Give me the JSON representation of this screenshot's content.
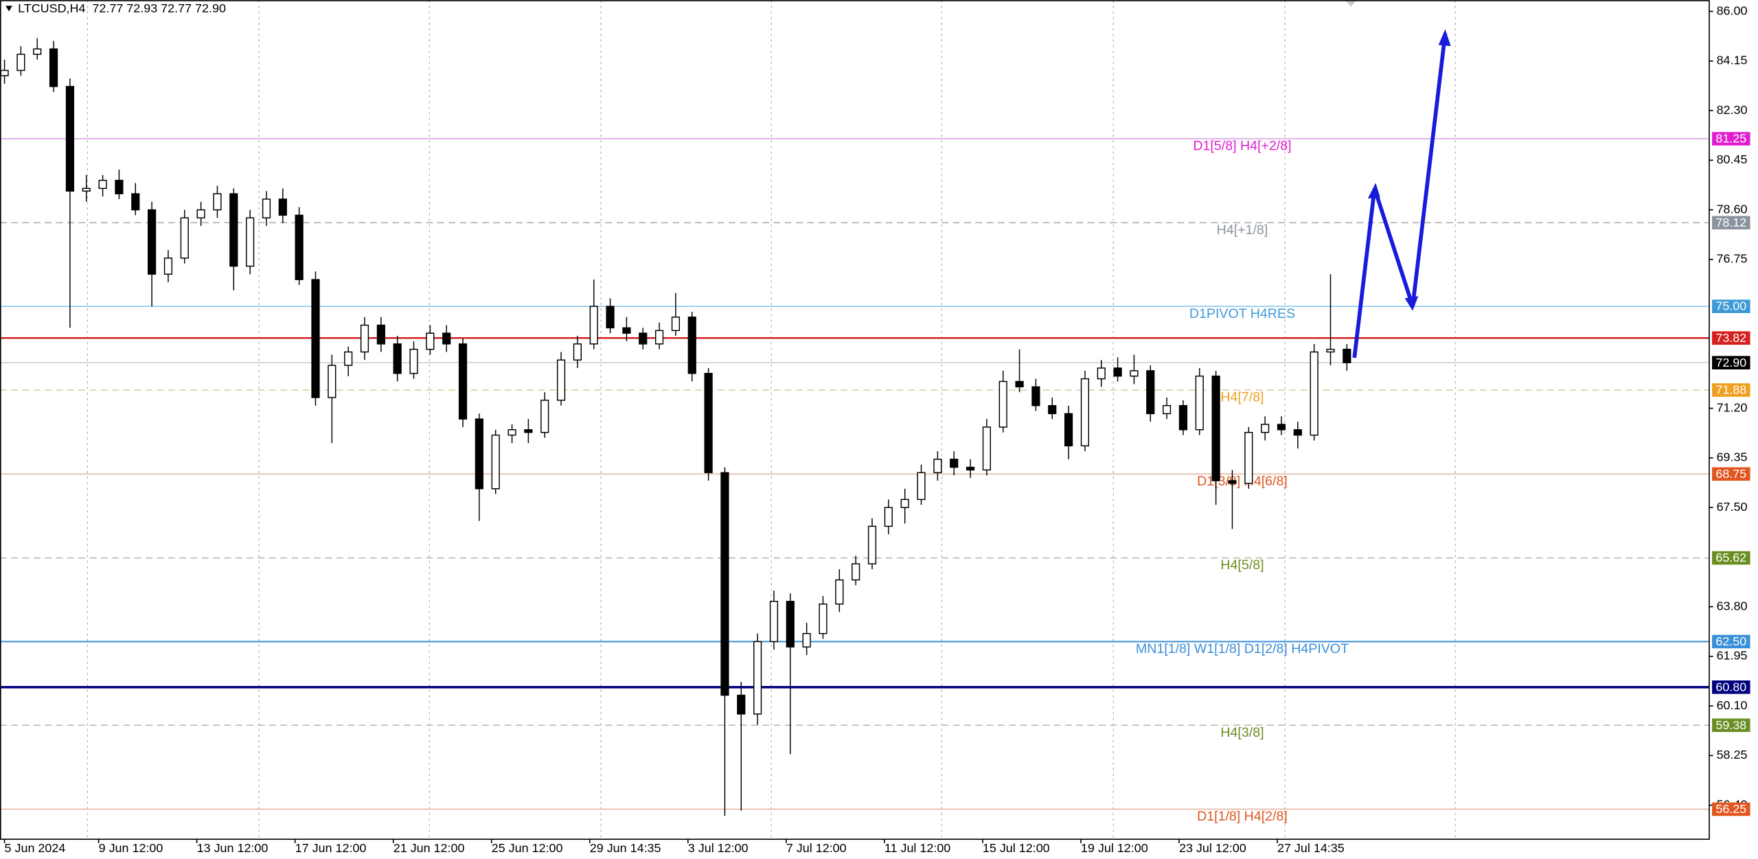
{
  "chart_data": {
    "type": "candlestick",
    "title": "LTCUSD,H4  72.77 72.93 72.77 72.90",
    "xlim": [
      -1.1,
      416.4
    ],
    "ylim": [
      55.15,
      86.42
    ],
    "yticks": [
      {
        "value": 86,
        "label": "86.00"
      },
      {
        "value": 84.15,
        "label": "84.15"
      },
      {
        "value": 82.3,
        "label": "82.30"
      },
      {
        "value": 80.45,
        "label": "80.45"
      },
      {
        "value": 78.6,
        "label": "78.60"
      },
      {
        "value": 76.75,
        "label": "76.75"
      },
      {
        "value": 71.2,
        "label": "71.20"
      },
      {
        "value": 69.35,
        "label": "69.35"
      },
      {
        "value": 67.5,
        "label": "67.50"
      },
      {
        "value": 63.8,
        "label": "63.80"
      },
      {
        "value": 61.95,
        "label": "61.95"
      },
      {
        "value": 60.1,
        "label": "60.10"
      },
      {
        "value": 58.25,
        "label": "58.25"
      },
      {
        "value": 56.4,
        "label": "56.40"
      }
    ],
    "xticks": [
      {
        "value": 0,
        "label": "5 Jun 2024"
      },
      {
        "value": 23,
        "label": "9 Jun 12:00"
      },
      {
        "value": 47,
        "label": "13 Jun 12:00"
      },
      {
        "value": 71,
        "label": "17 Jun 12:00"
      },
      {
        "value": 95,
        "label": "21 Jun 12:00"
      },
      {
        "value": 119,
        "label": "25 Jun 12:00"
      },
      {
        "value": 143,
        "label": "29 Jun 14:35"
      },
      {
        "value": 167,
        "label": "3 Jul 12:00"
      },
      {
        "value": 191,
        "label": "7 Jul 12:00"
      },
      {
        "value": 215,
        "label": "11 Jul 12:00"
      },
      {
        "value": 239,
        "label": "15 Jul 12:00"
      },
      {
        "value": 263,
        "label": "19 Jul 12:00"
      },
      {
        "value": 287,
        "label": "23 Jul 12:00"
      },
      {
        "value": 311,
        "label": "27 Jul 14:35"
      }
    ],
    "x": [
      0,
      4,
      8,
      12,
      16,
      20,
      24,
      28,
      32,
      36,
      40,
      44,
      48,
      52,
      56,
      60,
      64,
      68,
      72,
      76,
      80,
      84,
      88,
      92,
      96,
      100,
      104,
      108,
      112,
      116,
      120,
      124,
      128,
      132,
      136,
      140,
      144,
      148,
      152,
      156,
      160,
      164,
      168,
      172,
      176,
      180,
      184,
      188,
      192,
      196,
      200,
      204,
      208,
      212,
      216,
      220,
      224,
      228,
      232,
      236,
      240,
      244,
      248,
      252,
      256,
      260,
      264,
      268,
      272,
      276,
      280,
      284,
      288,
      292,
      296,
      300,
      304,
      308,
      312,
      316,
      320,
      324,
      328
    ],
    "open": [
      83.6,
      83.8,
      84.4,
      84.6,
      83.2,
      79.3,
      79.4,
      79.7,
      79.2,
      78.6,
      76.2,
      76.8,
      78.3,
      78.6,
      79.2,
      76.5,
      78.3,
      79.0,
      78.4,
      76.0,
      71.6,
      72.8,
      73.3,
      74.3,
      73.6,
      72.5,
      73.4,
      74.0,
      73.6,
      70.8,
      68.2,
      70.2,
      70.4,
      70.3,
      71.5,
      73.0,
      73.6,
      75.0,
      74.2,
      74.0,
      73.6,
      74.1,
      74.6,
      72.5,
      68.8,
      60.5,
      59.8,
      62.5,
      64.0,
      62.3,
      62.8,
      63.9,
      64.8,
      65.4,
      66.8,
      67.5,
      67.8,
      68.8,
      69.3,
      69.0,
      68.9,
      70.5,
      72.2,
      72.0,
      71.3,
      71.0,
      69.8,
      72.3,
      72.7,
      72.4,
      72.6,
      71.0,
      71.3,
      70.4,
      72.4,
      68.5,
      68.4,
      70.3,
      70.6,
      70.4,
      70.2,
      73.3,
      73.4
    ],
    "high": [
      84.2,
      84.7,
      85.0,
      84.9,
      83.5,
      79.9,
      79.9,
      80.1,
      79.6,
      78.9,
      77.1,
      78.6,
      78.9,
      79.5,
      79.4,
      78.6,
      79.3,
      79.4,
      78.7,
      76.3,
      73.2,
      73.5,
      74.6,
      74.6,
      73.9,
      73.7,
      74.3,
      74.3,
      73.8,
      71.0,
      70.4,
      70.6,
      70.8,
      71.8,
      73.3,
      73.9,
      76.0,
      75.3,
      74.6,
      74.2,
      74.4,
      75.5,
      74.8,
      72.7,
      69.0,
      61.0,
      62.8,
      64.4,
      64.3,
      63.2,
      64.2,
      65.2,
      65.7,
      67.1,
      67.8,
      68.2,
      69.1,
      69.6,
      69.6,
      69.3,
      70.8,
      72.6,
      73.4,
      72.3,
      71.6,
      71.3,
      72.6,
      73.0,
      73.1,
      73.2,
      72.8,
      71.6,
      71.5,
      72.7,
      72.6,
      68.9,
      70.5,
      70.9,
      70.9,
      70.7,
      73.6,
      76.2,
      73.6
    ],
    "low": [
      83.3,
      83.6,
      84.2,
      83.0,
      74.2,
      78.9,
      79.1,
      79.0,
      78.4,
      75.0,
      75.9,
      76.6,
      78.0,
      78.3,
      75.6,
      76.2,
      78.0,
      78.1,
      75.8,
      71.3,
      69.9,
      72.4,
      73.0,
      73.3,
      72.2,
      72.3,
      73.2,
      73.3,
      70.5,
      67.0,
      68.0,
      69.9,
      69.9,
      70.1,
      71.3,
      72.7,
      73.4,
      74.0,
      73.7,
      73.4,
      73.4,
      73.9,
      72.2,
      68.5,
      56.0,
      56.2,
      59.4,
      62.2,
      58.3,
      62.0,
      62.6,
      63.6,
      64.6,
      65.2,
      66.5,
      66.9,
      67.6,
      68.5,
      68.7,
      68.6,
      68.7,
      70.3,
      71.8,
      71.1,
      70.8,
      69.3,
      69.6,
      72.0,
      72.2,
      72.1,
      70.7,
      70.8,
      70.2,
      70.2,
      67.6,
      66.7,
      68.2,
      70.0,
      70.2,
      69.7,
      70.0,
      72.8,
      72.6
    ],
    "close": [
      83.8,
      84.4,
      84.6,
      83.2,
      79.3,
      79.4,
      79.7,
      79.2,
      78.6,
      76.2,
      76.8,
      78.3,
      78.6,
      79.2,
      76.5,
      78.3,
      79.0,
      78.4,
      76.0,
      71.6,
      72.8,
      73.3,
      74.3,
      73.6,
      72.5,
      73.4,
      74.0,
      73.6,
      70.8,
      68.2,
      70.2,
      70.4,
      70.3,
      71.5,
      73.0,
      73.6,
      75.0,
      74.2,
      74.0,
      73.6,
      74.1,
      74.6,
      72.5,
      68.8,
      60.5,
      59.8,
      62.5,
      64.0,
      62.3,
      62.8,
      63.9,
      64.8,
      65.4,
      66.8,
      67.5,
      67.8,
      68.8,
      69.3,
      69.0,
      68.9,
      70.5,
      72.2,
      72.0,
      71.3,
      71.0,
      69.8,
      72.3,
      72.7,
      72.4,
      72.6,
      71.0,
      71.3,
      70.4,
      72.4,
      68.5,
      68.4,
      70.3,
      70.6,
      70.4,
      70.2,
      73.3,
      73.4,
      72.9
    ],
    "levels": [
      {
        "value": 81.25,
        "value_label": "81.25",
        "name": "D1[5/8] H4[+2/8]",
        "color": "#e01ed0",
        "line_color": "#d9a6e6",
        "dash": false,
        "width": 1
      },
      {
        "value": 78.12,
        "value_label": "78.12",
        "name": "H4[+1/8]",
        "color": "#8a939e",
        "line_color": "#b0b0b0",
        "dash": true,
        "width": 1
      },
      {
        "value": 75.0,
        "value_label": "75.00",
        "name": "D1PIVOT H4RES",
        "color": "#3d9ad6",
        "line_color": "#8cc8ea",
        "dash": false,
        "width": 1
      },
      {
        "value": 73.82,
        "value_label": "73.82",
        "color": "#d42020",
        "line_color": "#d42020",
        "dash": false,
        "width": 1.5
      },
      {
        "value": 72.9,
        "value_label": "72.90",
        "color": "#000000",
        "line_color": "#d0d0d0",
        "dash": false,
        "width": 1
      },
      {
        "value": 71.88,
        "value_label": "71.88",
        "name": "H4[7/8]",
        "color": "#f0a020",
        "line_color": "#d8d0a0",
        "dash": true,
        "width": 1
      },
      {
        "value": 68.75,
        "value_label": "68.75",
        "name": "D1[3/8] H4[6/8]",
        "color": "#e0561e",
        "line_color": "#e6b8a6",
        "dash": false,
        "width": 1
      },
      {
        "value": 65.62,
        "value_label": "65.62",
        "name": "H4[5/8]",
        "color": "#6b8e23",
        "line_color": "#b8bca8",
        "dash": true,
        "width": 1
      },
      {
        "value": 62.5,
        "value_label": "62.50",
        "name": "MN1[1/8] W1[1/8] D1[2/8] H4PIVOT",
        "color": "#3a8fd8",
        "line_color": "#3a8fd8",
        "dash": false,
        "width": 1.2
      },
      {
        "value": 60.8,
        "value_label": "60.80",
        "color": "#00007f",
        "line_color": "#00007f",
        "dash": false,
        "width": 2.2
      },
      {
        "value": 59.38,
        "value_label": "59.38",
        "name": "H4[3/8]",
        "color": "#6b8e23",
        "line_color": "#b8bca8",
        "dash": true,
        "width": 1
      },
      {
        "value": 56.25,
        "value_label": "56.25",
        "name": "D1[1/8] H4[2/8]",
        "color": "#e0561e",
        "line_color": "#e6b8a6",
        "dash": false,
        "width": 1
      }
    ]
  }
}
